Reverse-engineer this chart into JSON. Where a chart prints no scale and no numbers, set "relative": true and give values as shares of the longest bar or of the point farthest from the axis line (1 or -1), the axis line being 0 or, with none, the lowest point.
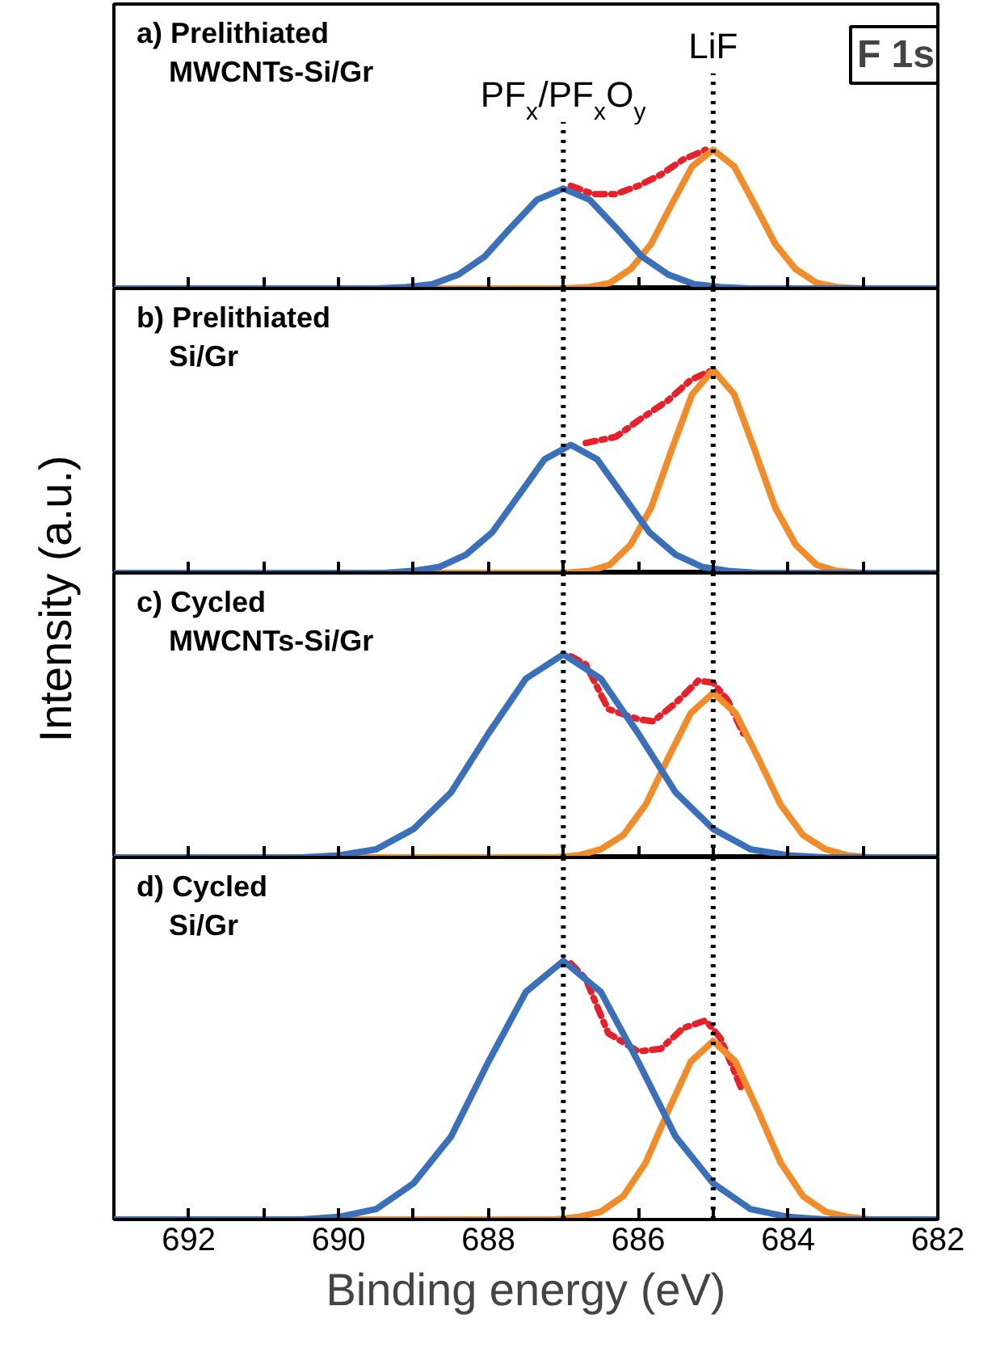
{
  "chart_data": [
    {
      "type": "line",
      "title": "a) Prelithiated\nMWCNTs-Si/Gr",
      "ylabel": "Intensity (a.u.)",
      "relative": true,
      "tick_labels": false,
      "xlim": [
        693,
        682
      ],
      "xticks": [
        692,
        {
          "value": 691,
          "label": null
        },
        690,
        {
          "value": 689,
          "label": null
        },
        688,
        {
          "value": 687,
          "label": null
        },
        686,
        {
          "value": 685,
          "label": null
        },
        684,
        {
          "value": 683,
          "label": null
        },
        682
      ],
      "ref_lines": [
        {
          "axis": "x",
          "value": 687.0,
          "label": "PF$_{x}$/PF$_{x}$O$_{y}$",
          "line_style": "dotted",
          "color": "#000000"
        },
        {
          "axis": "x",
          "value": 685.0,
          "label": "LiF",
          "line_style": "dotted",
          "color": "#000000"
        }
      ],
      "annotations": [
        "F 1s"
      ],
      "series": [
        {
          "color": "#e8202a",
          "line_style": "dashdot",
          "x": [
            686.9,
            686.6,
            686.3,
            686.0,
            685.7,
            685.4,
            685.1
          ],
          "values": [
            0.74,
            0.68,
            0.68,
            0.74,
            0.82,
            0.93,
            1.0
          ]
        },
        {
          "color": "#f28c28",
          "line_style": "solid",
          "x": [
            693,
            687.0,
            686.65,
            686.38,
            686.1,
            685.83,
            685.55,
            685.28,
            685.0,
            684.72,
            684.45,
            684.17,
            683.9,
            683.62,
            683.35,
            683.0,
            682
          ],
          "values": [
            0,
            0,
            0.01,
            0.04,
            0.14,
            0.32,
            0.61,
            0.88,
            1,
            0.88,
            0.61,
            0.32,
            0.14,
            0.04,
            0.01,
            0,
            0
          ]
        },
        {
          "color": "#3a6fba",
          "line_style": "solid",
          "x": [
            693,
            689.5,
            689.1,
            688.75,
            688.4,
            688.05,
            687.7,
            687.35,
            687.0,
            686.65,
            686.3,
            685.95,
            685.6,
            685.25,
            684.9,
            684.5,
            682
          ],
          "values": [
            0,
            0,
            0.01,
            0.03,
            0.1,
            0.23,
            0.44,
            0.64,
            0.72,
            0.64,
            0.44,
            0.23,
            0.1,
            0.03,
            0.01,
            0,
            0
          ]
        }
      ]
    },
    {
      "type": "line",
      "title": "b) Prelithiated\nSi/Gr",
      "relative": true,
      "tick_labels": false,
      "xlim": [
        693,
        682
      ],
      "xticks": [
        692,
        {
          "value": 691,
          "label": null
        },
        690,
        {
          "value": 689,
          "label": null
        },
        688,
        {
          "value": 687,
          "label": null
        },
        686,
        {
          "value": 685,
          "label": null
        },
        684,
        {
          "value": 683,
          "label": null
        },
        682
      ],
      "ref_lines": [
        {
          "axis": "x",
          "value": 687.0,
          "line_style": "dotted",
          "color": "#000000"
        },
        {
          "axis": "x",
          "value": 685.0,
          "line_style": "dotted",
          "color": "#000000"
        }
      ],
      "series": [
        {
          "color": "#e8202a",
          "line_style": "dashdot",
          "x": [
            686.7,
            686.3,
            686.0,
            685.6,
            685.3,
            685.0
          ],
          "values": [
            0.64,
            0.67,
            0.75,
            0.85,
            0.95,
            1.0
          ]
        },
        {
          "color": "#f28c28",
          "line_style": "solid",
          "x": [
            693,
            687.0,
            686.65,
            686.38,
            686.1,
            685.83,
            685.55,
            685.28,
            685.0,
            684.72,
            684.45,
            684.17,
            683.9,
            683.62,
            683.35,
            683.0,
            682
          ],
          "values": [
            0,
            0,
            0.01,
            0.04,
            0.14,
            0.32,
            0.61,
            0.88,
            1,
            0.88,
            0.61,
            0.32,
            0.14,
            0.04,
            0.01,
            0,
            0
          ]
        },
        {
          "color": "#3a6fba",
          "line_style": "solid",
          "x": [
            693,
            689.4,
            689.0,
            688.65,
            688.3,
            687.95,
            687.6,
            687.25,
            686.9,
            686.55,
            686.2,
            685.85,
            685.5,
            685.15,
            684.8,
            684.4,
            682
          ],
          "values": [
            0,
            0,
            0.01,
            0.03,
            0.09,
            0.2,
            0.38,
            0.56,
            0.63,
            0.56,
            0.38,
            0.2,
            0.09,
            0.03,
            0.01,
            0,
            0
          ]
        }
      ]
    },
    {
      "type": "line",
      "title": "c) Cycled\nMWCNTs-Si/Gr",
      "relative": true,
      "tick_labels": false,
      "xlim": [
        693,
        682
      ],
      "xticks": [
        692,
        {
          "value": 691,
          "label": null
        },
        690,
        {
          "value": 689,
          "label": null
        },
        688,
        {
          "value": 687,
          "label": null
        },
        686,
        {
          "value": 685,
          "label": null
        },
        684,
        {
          "value": 683,
          "label": null
        },
        682
      ],
      "ref_lines": [
        {
          "axis": "x",
          "value": 687.0,
          "line_style": "dotted",
          "color": "#000000"
        },
        {
          "axis": "x",
          "value": 685.0,
          "line_style": "dotted",
          "color": "#000000"
        }
      ],
      "series": [
        {
          "color": "#e8202a",
          "line_style": "dashdot",
          "x": [
            686.9,
            686.7,
            686.4,
            686.0,
            685.8,
            685.5,
            685.2,
            685.0,
            684.8,
            684.6
          ],
          "values": [
            0.99,
            0.95,
            0.73,
            0.68,
            0.67,
            0.76,
            0.87,
            0.86,
            0.77,
            0.61
          ]
        },
        {
          "color": "#f28c28",
          "line_style": "solid",
          "x": [
            693,
            687.1,
            686.8,
            686.5,
            686.2,
            685.9,
            685.6,
            685.3,
            685.0,
            684.7,
            684.4,
            684.1,
            683.8,
            683.5,
            683.2,
            682.9,
            682
          ],
          "values": [
            0,
            0,
            0.01,
            0.04,
            0.11,
            0.26,
            0.49,
            0.71,
            0.81,
            0.71,
            0.49,
            0.26,
            0.11,
            0.04,
            0.01,
            0,
            0
          ]
        },
        {
          "color": "#3a6fba",
          "line_style": "solid",
          "x": [
            693,
            690.5,
            690,
            689.5,
            689,
            688.5,
            688,
            687.5,
            687,
            686.5,
            686,
            685.5,
            685,
            684.5,
            684,
            683.5,
            682
          ],
          "values": [
            0,
            0,
            0.01,
            0.04,
            0.14,
            0.32,
            0.61,
            0.88,
            1,
            0.88,
            0.61,
            0.32,
            0.14,
            0.04,
            0.01,
            0,
            0
          ]
        }
      ]
    },
    {
      "type": "line",
      "title": "d) Cycled\nSi/Gr",
      "xlabel": "Binding energy (eV)",
      "relative": true,
      "tick_labels": "x",
      "xlim": [
        693,
        682
      ],
      "xticks": [
        692,
        {
          "value": 691,
          "label": null
        },
        690,
        {
          "value": 689,
          "label": null
        },
        688,
        {
          "value": 687,
          "label": null
        },
        686,
        {
          "value": 685,
          "label": null
        },
        684,
        {
          "value": 683,
          "label": null
        },
        682
      ],
      "ref_lines": [
        {
          "axis": "x",
          "value": 687.0,
          "line_style": "dotted",
          "color": "#000000"
        },
        {
          "axis": "x",
          "value": 685.0,
          "line_style": "dotted",
          "color": "#000000"
        }
      ],
      "series": [
        {
          "color": "#e8202a",
          "line_style": "dashdot",
          "x": [
            686.9,
            686.7,
            686.4,
            686.0,
            685.7,
            685.4,
            685.1,
            684.9,
            684.6
          ],
          "values": [
            0.99,
            0.93,
            0.72,
            0.65,
            0.66,
            0.74,
            0.77,
            0.7,
            0.49
          ]
        },
        {
          "color": "#f28c28",
          "line_style": "solid",
          "x": [
            693,
            687.1,
            686.8,
            686.5,
            686.2,
            685.9,
            685.6,
            685.3,
            685.0,
            684.7,
            684.4,
            684.1,
            683.8,
            683.5,
            683.2,
            682.9,
            682
          ],
          "values": [
            0,
            0,
            0.01,
            0.03,
            0.09,
            0.22,
            0.42,
            0.61,
            0.69,
            0.61,
            0.42,
            0.22,
            0.09,
            0.03,
            0.01,
            0,
            0
          ]
        },
        {
          "color": "#3a6fba",
          "line_style": "solid",
          "x": [
            693,
            690.5,
            690,
            689.5,
            689,
            688.5,
            688,
            687.5,
            687,
            686.5,
            686,
            685.5,
            685,
            684.5,
            684,
            683.5,
            682
          ],
          "values": [
            0,
            0,
            0.01,
            0.04,
            0.14,
            0.32,
            0.61,
            0.88,
            1,
            0.88,
            0.61,
            0.32,
            0.14,
            0.04,
            0.01,
            0,
            0
          ]
        }
      ]
    }
  ]
}
